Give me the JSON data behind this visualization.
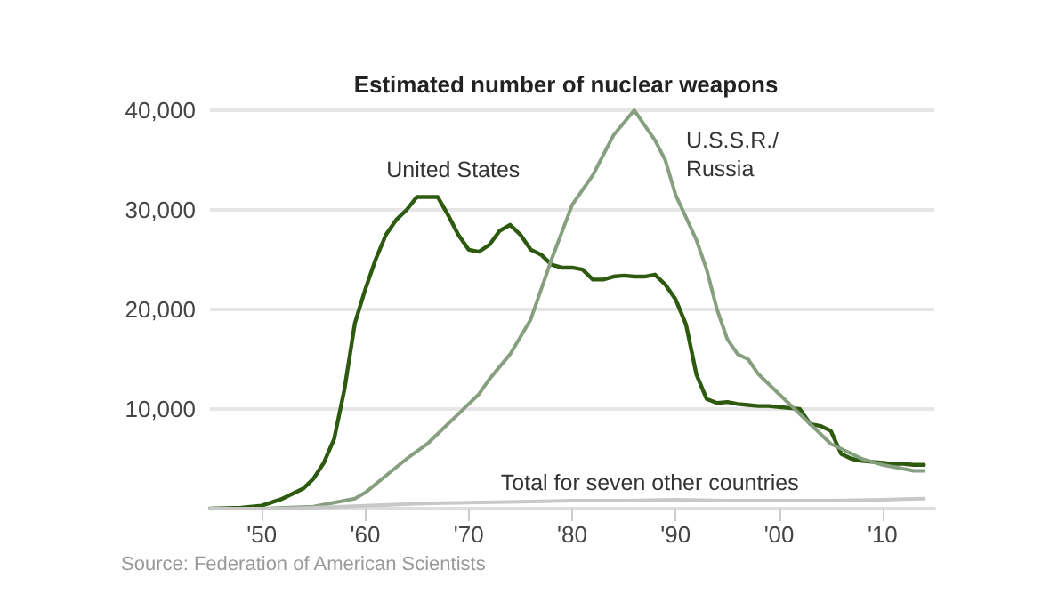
{
  "chart_data": {
    "type": "line",
    "title": "Estimated number of nuclear weapons",
    "annotations": [
      "Source: Federation of American Scientists"
    ],
    "xlim": [
      1945,
      2015
    ],
    "xticks": [
      {
        "value": 1950,
        "label": "'50"
      },
      {
        "value": 1960,
        "label": "'60"
      },
      {
        "value": 1970,
        "label": "'70"
      },
      {
        "value": 1980,
        "label": "'80"
      },
      {
        "value": 1990,
        "label": "'90"
      },
      {
        "value": 2000,
        "label": "'00"
      },
      {
        "value": 2010,
        "label": "'10"
      }
    ],
    "ylim": [
      0,
      40000
    ],
    "yticks": [
      {
        "value": 0,
        "label": null
      },
      {
        "value": 10000,
        "label": "10,000"
      },
      {
        "value": 20000,
        "label": "20,000"
      },
      {
        "value": 30000,
        "label": "30,000"
      },
      {
        "value": 40000,
        "label": "40,000"
      }
    ],
    "grid": "y",
    "legend": false,
    "marker": "none",
    "line_style": "solid",
    "series": [
      {
        "name": "United States",
        "color": "#2d5a0e",
        "x": [
          1945,
          1948,
          1950,
          1952,
          1954,
          1955,
          1956,
          1957,
          1958,
          1959,
          1960,
          1961,
          1962,
          1963,
          1964,
          1965,
          1966,
          1967,
          1968,
          1969,
          1970,
          1971,
          1972,
          1973,
          1974,
          1975,
          1976,
          1977,
          1978,
          1979,
          1980,
          1981,
          1982,
          1983,
          1984,
          1985,
          1986,
          1987,
          1988,
          1989,
          1990,
          1991,
          1992,
          1993,
          1994,
          1995,
          1996,
          1997,
          1998,
          1999,
          2000,
          2001,
          2002,
          2003,
          2004,
          2005,
          2006,
          2007,
          2008,
          2009,
          2010,
          2011,
          2012,
          2013,
          2014
        ],
        "values": [
          0,
          100,
          300,
          1000,
          2000,
          3000,
          4600,
          7000,
          12000,
          18600,
          22000,
          25000,
          27500,
          29000,
          30000,
          31300,
          31300,
          31300,
          29500,
          27500,
          26000,
          25800,
          26500,
          27900,
          28500,
          27500,
          26000,
          25500,
          24500,
          24200,
          24200,
          24000,
          23000,
          23000,
          23300,
          23400,
          23300,
          23300,
          23500,
          22500,
          21000,
          18500,
          13500,
          11000,
          10600,
          10700,
          10500,
          10400,
          10300,
          10300,
          10200,
          10100,
          10000,
          8500,
          8300,
          7800,
          5500,
          5000,
          4800,
          4700,
          4600,
          4500,
          4500,
          4400,
          4400
        ]
      },
      {
        "name": "U.S.S.R./\nRussia",
        "color": "#86a07f",
        "x": [
          1945,
          1950,
          1955,
          1958,
          1959,
          1960,
          1962,
          1964,
          1966,
          1968,
          1970,
          1971,
          1972,
          1974,
          1976,
          1977,
          1978,
          1980,
          1982,
          1984,
          1986,
          1987,
          1988,
          1989,
          1990,
          1992,
          1993,
          1994,
          1995,
          1996,
          1997,
          1998,
          1999,
          2000,
          2001,
          2002,
          2003,
          2004,
          2005,
          2006,
          2007,
          2008,
          2009,
          2010,
          2011,
          2012,
          2013,
          2014
        ],
        "values": [
          0,
          0,
          200,
          800,
          1000,
          1600,
          3300,
          5000,
          6500,
          8500,
          10500,
          11500,
          13000,
          15500,
          19000,
          22000,
          25000,
          30500,
          33500,
          37500,
          40000,
          38500,
          37000,
          35000,
          31500,
          27000,
          24000,
          20000,
          17000,
          15500,
          15000,
          13500,
          12500,
          11500,
          10500,
          9500,
          8500,
          7500,
          6500,
          6000,
          5500,
          5000,
          4700,
          4400,
          4200,
          4000,
          3800,
          3800
        ]
      },
      {
        "name": "Total for seven other countries",
        "color": "#c8c8c8",
        "x": [
          1945,
          1952,
          1955,
          1960,
          1965,
          1970,
          1975,
          1980,
          1985,
          1990,
          1995,
          2000,
          2005,
          2010,
          2014
        ],
        "values": [
          0,
          0,
          100,
          300,
          500,
          600,
          700,
          800,
          800,
          900,
          800,
          800,
          800,
          900,
          1000
        ]
      }
    ]
  }
}
